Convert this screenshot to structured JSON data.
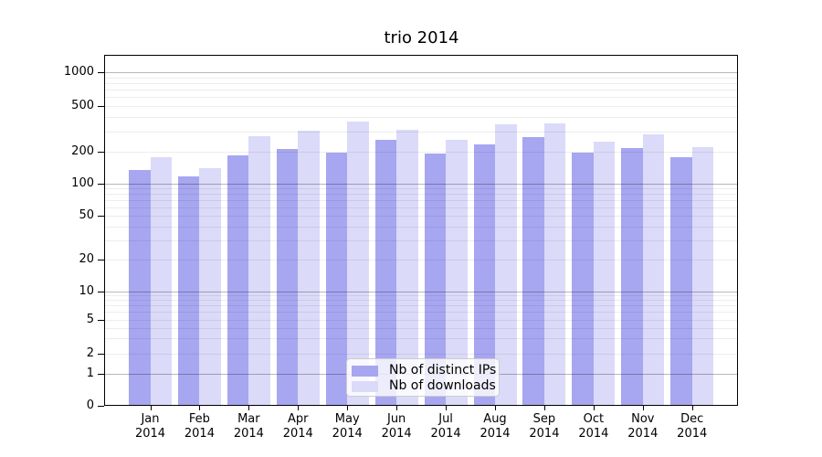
{
  "chart_data": {
    "type": "bar",
    "title": "trio 2014",
    "categories": [
      "Jan 2014",
      "Feb 2014",
      "Mar 2014",
      "Apr 2014",
      "May 2014",
      "Jun 2014",
      "Jul 2014",
      "Aug 2014",
      "Sep 2014",
      "Oct 2014",
      "Nov 2014",
      "Dec 2014"
    ],
    "series": [
      {
        "name": "Nb of distinct IPs",
        "color": "#a7a6f0",
        "values": [
          135,
          118,
          185,
          210,
          198,
          254,
          191,
          231,
          268,
          196,
          215,
          177
        ]
      },
      {
        "name": "Nb of downloads",
        "color": "#dbdaf8",
        "values": [
          177,
          140,
          272,
          303,
          366,
          311,
          254,
          347,
          354,
          245,
          283,
          220
        ]
      }
    ],
    "yscale": "symlog",
    "yticks": [
      0,
      1,
      2,
      5,
      10,
      20,
      50,
      100,
      200,
      500,
      1000
    ],
    "xlabel": "",
    "ylabel": "",
    "grid": "horizontal log gridlines, minor light / major dark at powers of 10",
    "legend_position": "inside lower center",
    "axis_color": "#000000",
    "background_color": "#ffffff"
  }
}
